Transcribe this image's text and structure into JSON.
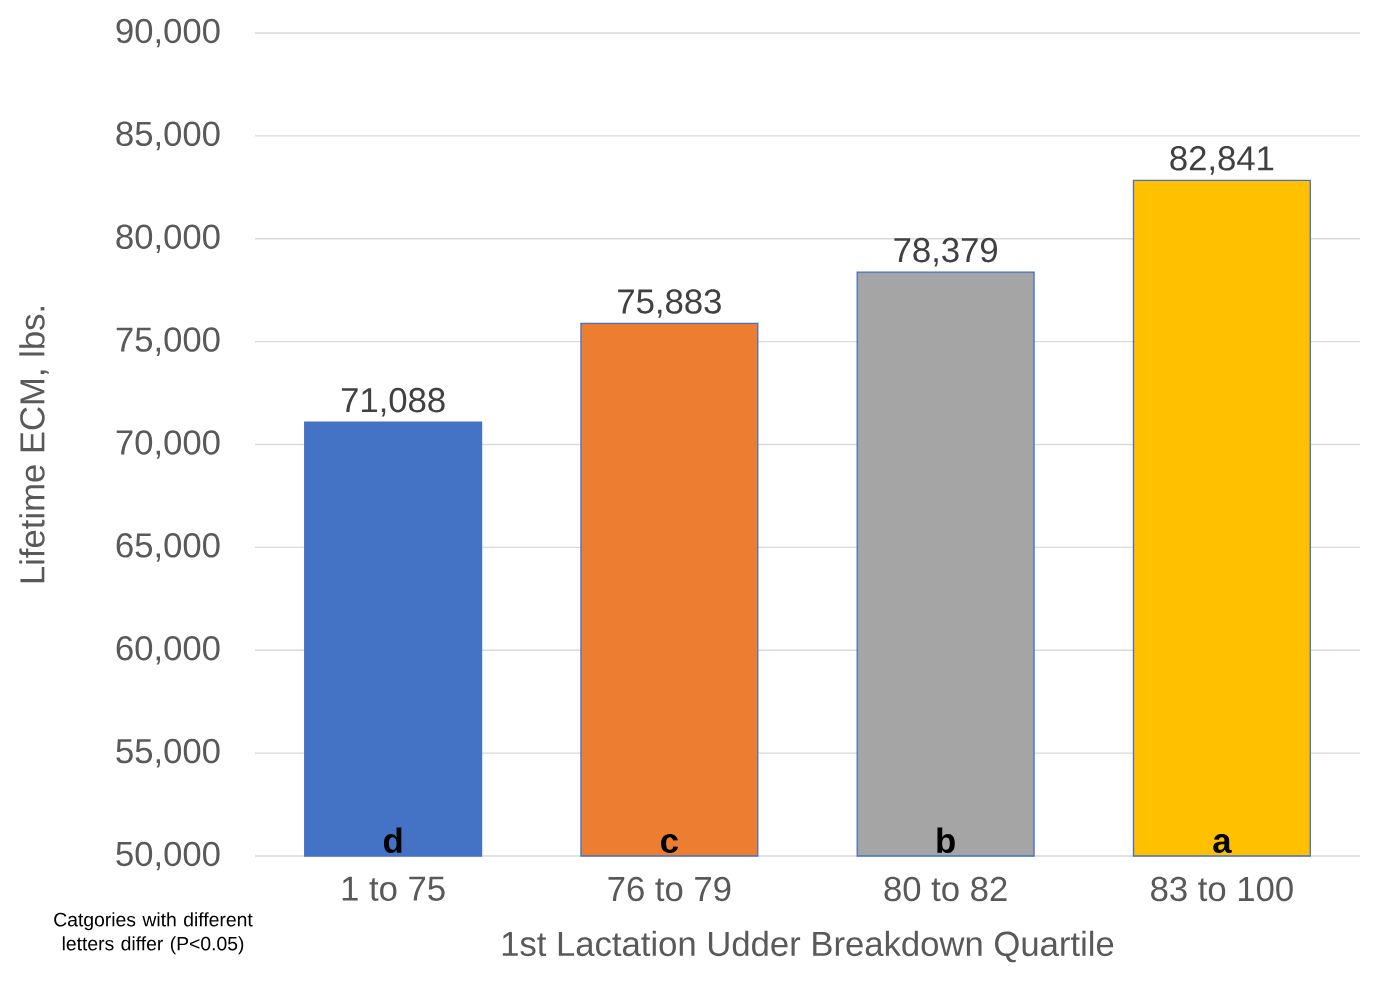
{
  "chart_data": {
    "type": "bar",
    "xlabel": "1st Lactation Udder Breakdown Quartile",
    "ylabel": "Lifetime ECM, lbs.",
    "categories": [
      "1 to 75",
      "76 to 79",
      "80 to 82",
      "83 to 100"
    ],
    "values": [
      71088,
      75883,
      78379,
      82841
    ],
    "value_labels": [
      "71,088",
      "75,883",
      "78,379",
      "82,841"
    ],
    "colors": [
      "#4472c4",
      "#ed7d31",
      "#a5a5a5",
      "#ffc000"
    ],
    "ylim": [
      50000,
      90000
    ],
    "yticks": [
      {
        "value": 50000,
        "label": "50,000"
      },
      {
        "value": 55000,
        "label": "55,000"
      },
      {
        "value": 60000,
        "label": "60,000"
      },
      {
        "value": 65000,
        "label": "65,000"
      },
      {
        "value": 70000,
        "label": "70,000"
      },
      {
        "value": 75000,
        "label": "75,000"
      },
      {
        "value": 80000,
        "label": "80,000"
      },
      {
        "value": 85000,
        "label": "85,000"
      },
      {
        "value": 90000,
        "label": "90,000"
      }
    ],
    "grid": "y",
    "annotations": [
      "d",
      "c",
      "b",
      "a",
      "Catgories with different letters differ (P<0.05)"
    ]
  }
}
